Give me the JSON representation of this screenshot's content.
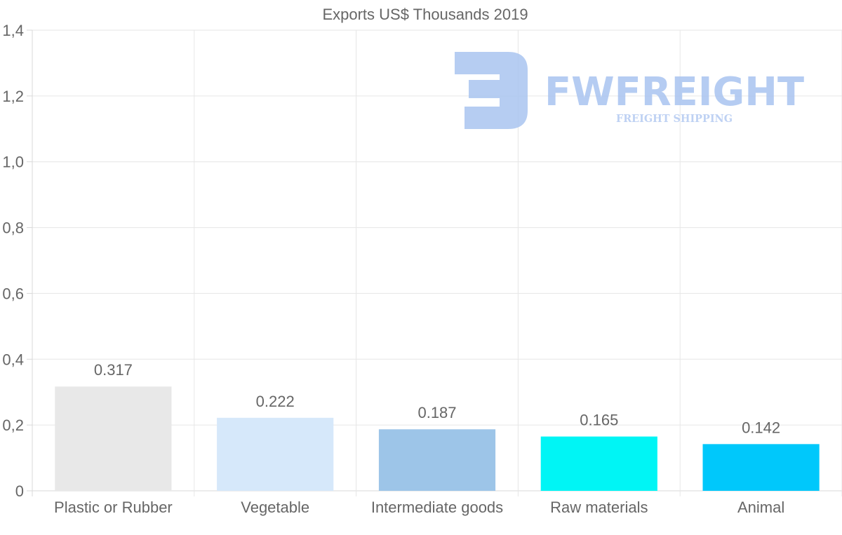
{
  "chart_data": {
    "type": "bar",
    "title": "Exports US$ Thousands 2019",
    "categories": [
      "Plastic or Rubber",
      "Vegetable",
      "Intermediate goods",
      "Raw materials",
      "Animal"
    ],
    "values": [
      0.317,
      0.222,
      0.187,
      0.165,
      0.142
    ],
    "value_labels": [
      "0.317",
      "0.222",
      "0.187",
      "0.165",
      "0.142"
    ],
    "colors": [
      "#e8e8e8",
      "#d6e8fa",
      "#9dc5e8",
      "#00f5f5",
      "#00c8fb"
    ],
    "ylim": [
      0,
      1.4
    ],
    "y_ticks": [
      0,
      0.2,
      0.4,
      0.6,
      0.8,
      1.0,
      1.2,
      1.4
    ],
    "y_tick_labels": [
      "0",
      "0,2",
      "0,4",
      "0,6",
      "0,8",
      "1,0",
      "1,2",
      "1,4"
    ],
    "xlabel": "",
    "ylabel": "",
    "grid": true,
    "legend": "none"
  },
  "watermark": {
    "name": "FWFREIGHT",
    "tagline": "FREIGHT SHIPPING",
    "color": "#a9c4f0",
    "tagline_color": "#b3caf2"
  }
}
